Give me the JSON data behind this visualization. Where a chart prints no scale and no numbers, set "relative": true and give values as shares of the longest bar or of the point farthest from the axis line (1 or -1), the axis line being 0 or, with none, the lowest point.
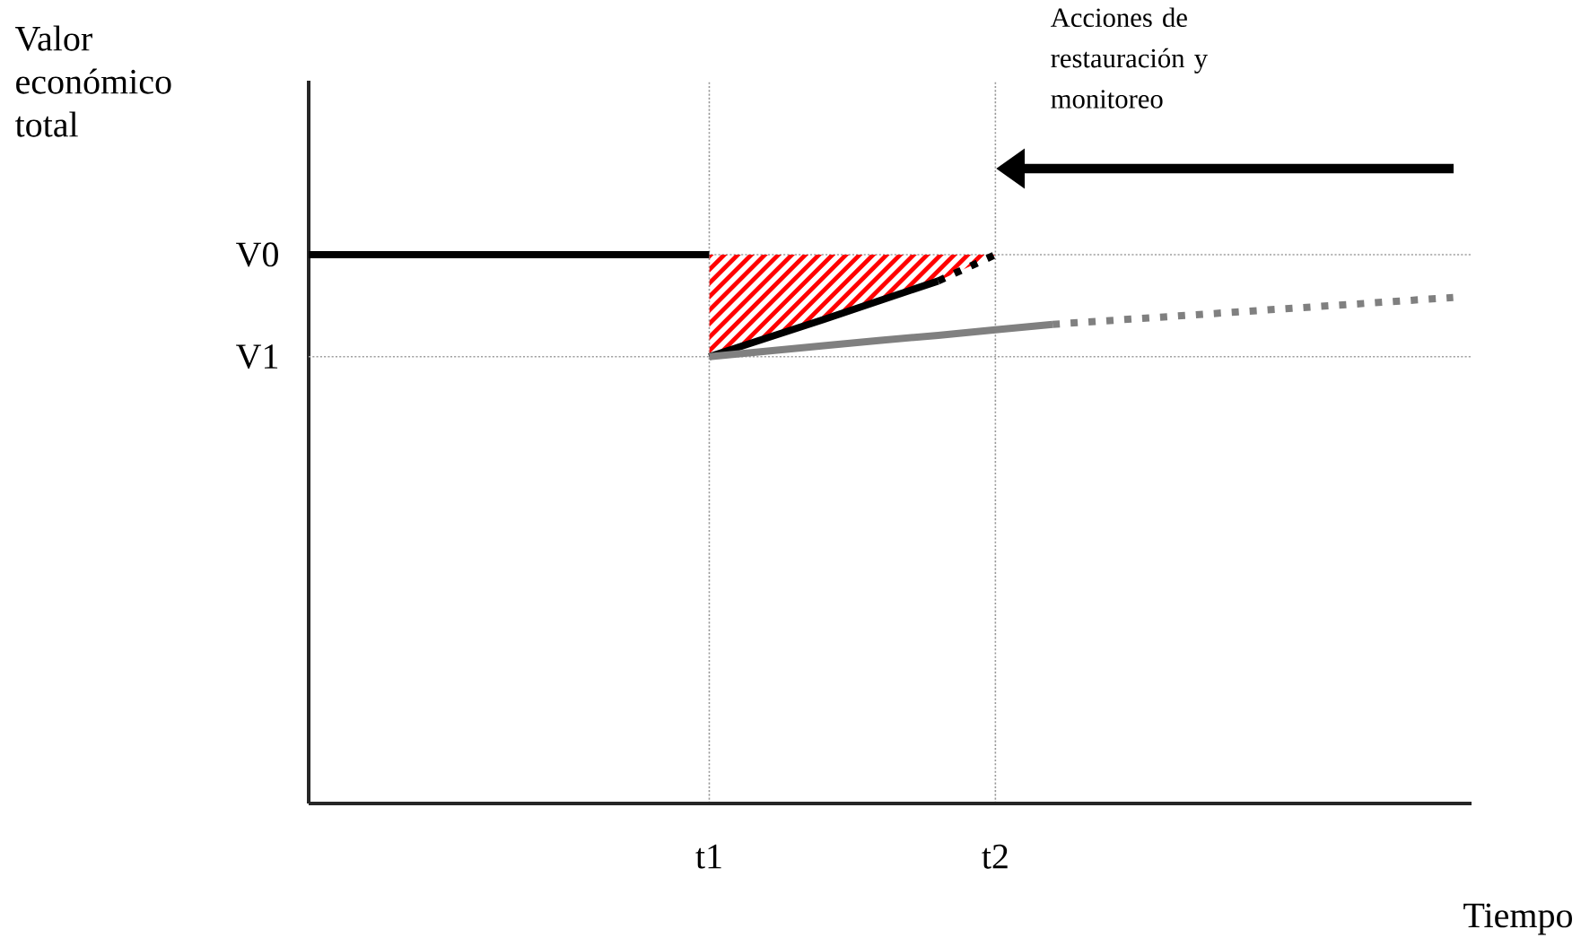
{
  "chart_data": {
    "type": "line",
    "relative": true,
    "grid": "x",
    "xlabel": "Tiempo",
    "categories": [
      null,
      null,
      null,
      null,
      null,
      null,
      null,
      "t1",
      null,
      null,
      null,
      null,
      "t2",
      null,
      null,
      null,
      null,
      null,
      null,
      null,
      null
    ],
    "ref_lines": [
      {
        "axis": "y",
        "value": 1.0,
        "label": "V0",
        "color": "#a0a0a0",
        "line_style": "dotted"
      },
      {
        "axis": "y",
        "value": 0.814,
        "label": "V1",
        "color": "#a0a0a0",
        "line_style": "dotted"
      }
    ],
    "annotations": [
      "Valor económico total",
      "Acciones de restauración y monitoreo"
    ],
    "series": [
      {
        "type": "area",
        "color": "#ff0000",
        "values": [
          null,
          null,
          null,
          null,
          null,
          null,
          null,
          1.0,
          1.0,
          1.0,
          1.0,
          1.0,
          1.0,
          null,
          null,
          null,
          null,
          null,
          null,
          null,
          null
        ]
      },
      {
        "color": "#000000",
        "line_style": "solid",
        "values": [
          null,
          null,
          null,
          null,
          null,
          null,
          null,
          0.814,
          0.848,
          0.882,
          0.917,
          0.952,
          null,
          null,
          null,
          null,
          null,
          null,
          null,
          null,
          null
        ]
      },
      {
        "color": "#000000",
        "line_style": "dotted",
        "values": [
          null,
          null,
          null,
          null,
          null,
          null,
          null,
          null,
          null,
          null,
          null,
          0.952,
          1.0,
          null,
          null,
          null,
          null,
          null,
          null,
          null,
          null
        ]
      },
      {
        "color": "#808080",
        "line_style": "solid",
        "values": [
          null,
          null,
          null,
          null,
          null,
          null,
          null,
          0.814,
          0.824,
          0.834,
          0.844,
          0.853,
          0.863,
          0.873,
          null,
          null,
          null,
          null,
          null,
          null,
          null
        ]
      },
      {
        "color": "#808080",
        "line_style": "dotted",
        "values": [
          null,
          null,
          null,
          null,
          null,
          null,
          null,
          null,
          null,
          null,
          null,
          null,
          null,
          0.873,
          0.88,
          0.887,
          0.894,
          0.901,
          0.908,
          0.915,
          0.922
        ]
      },
      {
        "color": "#000000",
        "line_style": "solid",
        "values": [
          1.0,
          1.0,
          1.0,
          1.0,
          1.0,
          1.0,
          1.0,
          1.0,
          null,
          null,
          null,
          null,
          null,
          null,
          null,
          null,
          null,
          null,
          null,
          null,
          null
        ]
      }
    ]
  }
}
